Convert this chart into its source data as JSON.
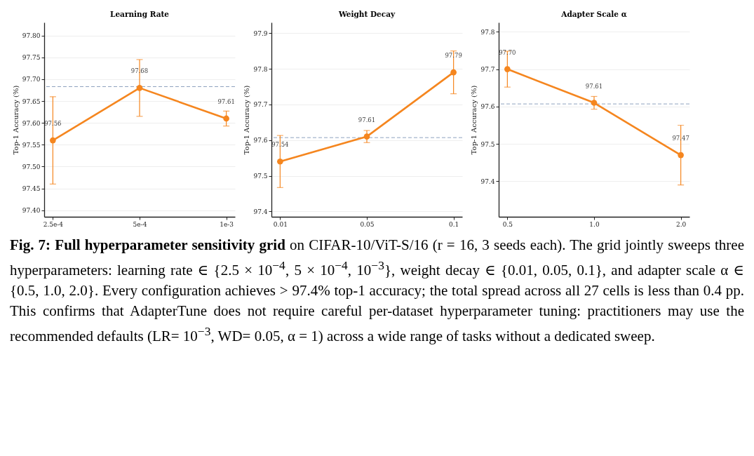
{
  "chart_data": [
    {
      "type": "line",
      "title": "Learning Rate",
      "ylabel": "Top-1 Accuracy (%)",
      "categories": [
        "2.5e-4",
        "5e-4",
        "1e-3"
      ],
      "series": [
        {
          "color": "#f5861f",
          "values": [
            97.56,
            97.68,
            97.61
          ],
          "errors": [
            0.1,
            0.065,
            0.017
          ],
          "value_labels": [
            "97.56",
            "97.68",
            "97.61"
          ]
        }
      ],
      "ylim": [
        97.385,
        97.83
      ],
      "yticks": [
        {
          "value": 97.4,
          "label": "97.40"
        },
        97.45,
        {
          "value": 97.5,
          "label": "97.50"
        },
        97.55,
        {
          "value": 97.6,
          "label": "97.60"
        },
        97.65,
        {
          "value": 97.7,
          "label": "97.70"
        },
        97.75,
        {
          "value": 97.8,
          "label": "97.80"
        }
      ],
      "grid": "y",
      "marker": "circle",
      "line_style": "solid",
      "ref_lines": [
        {
          "axis": "y",
          "value": 97.683,
          "color": "#8fa3bf",
          "line_style": "dashed"
        }
      ],
      "annotations": [
        "Fig. 7: Full hyperparameter sensitivity grid",
        "on CIFAR-10/ViT-S/16 (r = 16, 3 seeds each). The grid jointly sweeps three hyperparameters: learning rate ∈ {2.5 × 10$^{−4}$,  5 × 10$^{−4}$,  10$^{−3}$}, weight decay ∈ {0.01,  0.05,  0.1}, and adapter scale α ∈ {0.5,  1.0,  2.0}. Every configuration achieves > 97.4% top-1 accuracy; the total spread across all 27 cells is less than 0.4 pp. This confirms that AdapterTune does not require careful per-dataset hyperparameter tuning: practitioners may use the recommended defaults (LR= 10$^{−3}$, WD= 0.05, α = 1) across a wide range of tasks without a dedicated sweep."
      ]
    },
    {
      "type": "line",
      "title": "Weight Decay",
      "ylabel": "Top-1 Accuracy (%)",
      "categories": [
        "0.01",
        "0.05",
        "0.1"
      ],
      "series": [
        {
          "color": "#f5861f",
          "values": [
            97.54,
            97.61,
            97.79
          ],
          "errors": [
            0.073,
            0.017,
            0.06
          ],
          "value_labels": [
            "97.54",
            "97.61",
            "97.79"
          ]
        }
      ],
      "ylim": [
        97.385,
        97.93
      ],
      "yticks": [
        97.4,
        97.5,
        97.6,
        97.7,
        97.8,
        97.9
      ],
      "grid": "y",
      "marker": "circle",
      "line_style": "solid",
      "ref_lines": [
        {
          "axis": "y",
          "value": 97.607,
          "color": "#8fa3bf",
          "line_style": "dashed"
        }
      ]
    },
    {
      "type": "line",
      "title": "Adapter Scale α",
      "ylabel": "Top-1 Accuracy (%)",
      "categories": [
        "0.5",
        "1.0",
        "2.0"
      ],
      "series": [
        {
          "color": "#f5861f",
          "values": [
            97.7,
            97.61,
            97.47
          ],
          "errors": [
            0.048,
            0.017,
            0.08
          ],
          "value_labels": [
            "97.70",
            "97.61",
            "97.47"
          ]
        }
      ],
      "ylim": [
        97.305,
        97.825
      ],
      "yticks": [
        97.4,
        97.5,
        97.6,
        97.7,
        97.8
      ],
      "grid": "y",
      "marker": "circle",
      "line_style": "solid",
      "ref_lines": [
        {
          "axis": "y",
          "value": 97.607,
          "color": "#8fa3bf",
          "line_style": "dashed"
        }
      ]
    }
  ]
}
